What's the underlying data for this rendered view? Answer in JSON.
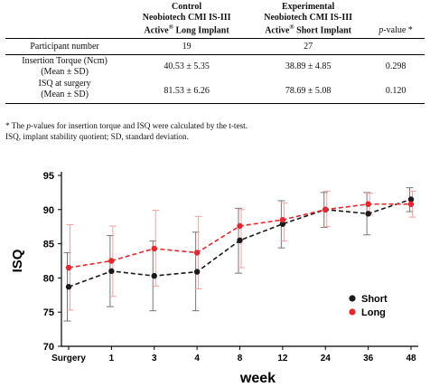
{
  "table": {
    "headers": {
      "control": {
        "line1": "Control",
        "line2": "Neobiotech CMI IS-III",
        "line3_pre": "Active",
        "line3_post": " Long Implant"
      },
      "experimental": {
        "line1": "Experimental",
        "line2": "Neobiotech CMI IS-III",
        "line3_pre": "Active",
        "line3_post": " Short Implant"
      },
      "registered": "®",
      "pvalue_italic": "p",
      "pvalue_rest": "-value *"
    },
    "rows": [
      {
        "label1": "Participant number",
        "label2": "",
        "control": "19",
        "experimental": "27",
        "p": ""
      },
      {
        "label1": "Insertion Torque (Ncm)",
        "label2": "(Mean ± SD)",
        "control": "40.53 ± 5.35",
        "experimental": "38.89 ± 4.85",
        "p": "0.298"
      },
      {
        "label1": "ISQ at surgery",
        "label2": "(Mean ± SD)",
        "control": "81.53 ± 6.26",
        "experimental": "78.69 ± 5.08",
        "p": "0.120"
      }
    ]
  },
  "footnotes": {
    "line1_pre": "* The ",
    "line1_italic": "p",
    "line1_post": "-values for insertion torque and ISQ were calculated by the t-test.",
    "line2": "ISQ, implant stability quotient; SD, standard deviation."
  },
  "chart_data": {
    "type": "line",
    "categories": [
      "Surgery",
      "1",
      "3",
      "4",
      "8",
      "12",
      "24",
      "36",
      "48"
    ],
    "xlabel": "week",
    "ylabel": "ISQ",
    "ylim": [
      70,
      95
    ],
    "yticks": [
      70,
      75,
      80,
      85,
      90,
      95
    ],
    "legend_placement": "bottom-right",
    "series": [
      {
        "name": "Short",
        "color": "#1a1a1a",
        "errcolor": "#777777",
        "values": [
          78.7,
          81.0,
          80.3,
          80.9,
          85.5,
          87.9,
          90.0,
          89.4,
          91.5
        ],
        "err_low": [
          73.7,
          75.8,
          75.2,
          75.2,
          80.7,
          84.4,
          87.4,
          86.3,
          89.7
        ],
        "err_high": [
          83.7,
          86.2,
          85.4,
          86.7,
          90.2,
          91.3,
          92.5,
          92.5,
          93.2
        ]
      },
      {
        "name": "Long",
        "color": "#e8262b",
        "errcolor": "#f2a0a0",
        "values": [
          81.5,
          82.5,
          84.3,
          83.7,
          87.6,
          88.5,
          90.0,
          90.8,
          90.8
        ],
        "err_low": [
          75.3,
          77.3,
          78.8,
          78.4,
          81.5,
          85.4,
          87.5,
          89.2,
          88.9
        ],
        "err_high": [
          87.8,
          87.6,
          89.9,
          89.0,
          90.0,
          91.0,
          92.7,
          92.4,
          92.7
        ]
      }
    ]
  }
}
